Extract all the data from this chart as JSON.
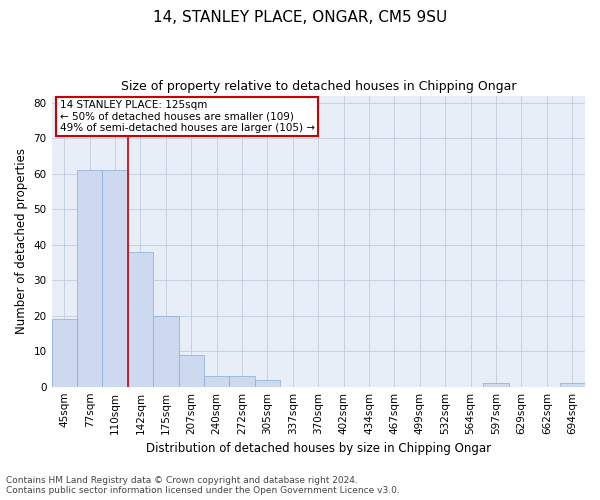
{
  "title": "14, STANLEY PLACE, ONGAR, CM5 9SU",
  "subtitle": "Size of property relative to detached houses in Chipping Ongar",
  "xlabel": "Distribution of detached houses by size in Chipping Ongar",
  "ylabel": "Number of detached properties",
  "bar_labels": [
    "45sqm",
    "77sqm",
    "110sqm",
    "142sqm",
    "175sqm",
    "207sqm",
    "240sqm",
    "272sqm",
    "305sqm",
    "337sqm",
    "370sqm",
    "402sqm",
    "434sqm",
    "467sqm",
    "499sqm",
    "532sqm",
    "564sqm",
    "597sqm",
    "629sqm",
    "662sqm",
    "694sqm"
  ],
  "bar_heights": [
    19,
    61,
    61,
    38,
    20,
    9,
    3,
    3,
    2,
    0,
    0,
    0,
    0,
    0,
    0,
    0,
    0,
    1,
    0,
    0,
    1
  ],
  "bar_color": "#ccd9ee",
  "bar_edge_color": "#8aabd4",
  "bar_width": 1.0,
  "red_line_x": 2.5,
  "annotation_text": "14 STANLEY PLACE: 125sqm\n← 50% of detached houses are smaller (109)\n49% of semi-detached houses are larger (105) →",
  "annotation_box_color": "#ffffff",
  "annotation_box_edge_color": "#cc0000",
  "red_line_color": "#cc0000",
  "ylim": [
    0,
    82
  ],
  "yticks": [
    0,
    10,
    20,
    30,
    40,
    50,
    60,
    70,
    80
  ],
  "grid_color": "#c0ccdd",
  "background_color": "#e8eef8",
  "footer_line1": "Contains HM Land Registry data © Crown copyright and database right 2024.",
  "footer_line2": "Contains public sector information licensed under the Open Government Licence v3.0.",
  "title_fontsize": 11,
  "subtitle_fontsize": 9,
  "axis_label_fontsize": 8.5,
  "tick_fontsize": 7.5,
  "annotation_fontsize": 7.5,
  "footer_fontsize": 6.5
}
